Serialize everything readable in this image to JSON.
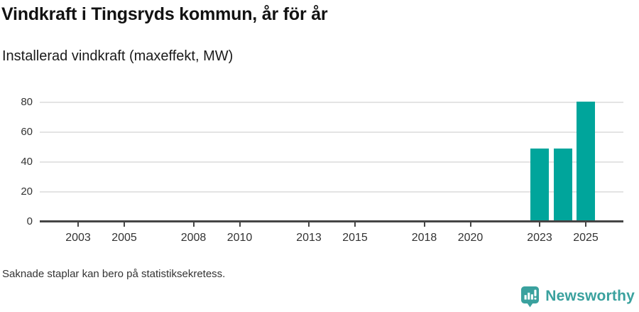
{
  "chart": {
    "title": "Vindkraft i Tingsryds kommun, år för år",
    "subtitle": "Installerad vindkraft (maxeffekt, MW)",
    "footnote": "Saknade staplar kan bero på statistiksekretess."
  },
  "brand": {
    "name": "Newsworthy",
    "logo_icon": "speech-bubble-bar-chart-exclamation",
    "color": "#3aa19e"
  },
  "colors": {
    "bar": "#00a59b",
    "axis": "#454545",
    "gridline": "#e4e4e4",
    "tick_text": "#333333",
    "title_text": "#121212"
  },
  "chart_data": {
    "type": "bar",
    "title": "Vindkraft i Tingsryds kommun, år för år",
    "subtitle": "Installerad vindkraft (maxeffekt, MW)",
    "xlabel": "",
    "ylabel": "Installerad vindkraft (maxeffekt, MW)",
    "x_range": [
      2001,
      2027
    ],
    "ylim": [
      0,
      80
    ],
    "grid": "horizontal",
    "legend": "none",
    "y_ticks": [
      0,
      20,
      40,
      60,
      80
    ],
    "x_tick_years": [
      2003,
      2005,
      2008,
      2010,
      2013,
      2015,
      2018,
      2020,
      2023,
      2025
    ],
    "series": [
      {
        "name": "Installerad vindkraft (maxeffekt, MW)",
        "points": [
          {
            "year": 2023,
            "value": 49
          },
          {
            "year": 2024,
            "value": 49
          },
          {
            "year": 2025,
            "value": 80.5
          }
        ]
      }
    ],
    "note": "Saknade staplar kan bero på statistiksekretess."
  }
}
